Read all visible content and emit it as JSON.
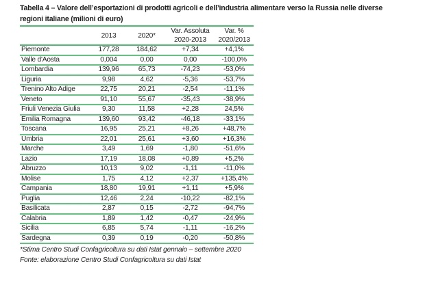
{
  "title": "Tabella 4 – Valore dell’esportazioni di prodotti agricoli e dell’industria alimentare verso la Russia nelle diverse regioni italiane (milioni di euro)",
  "headers": {
    "c1": "2013",
    "c2": "2020*",
    "c3a": "Var. Assoluta",
    "c3b": "2020-2013",
    "c4a": "Var. %",
    "c4b": "2020/2013"
  },
  "rows": [
    [
      "Piemonte",
      "177,28",
      "184,62",
      "+7,34",
      "+4,1%"
    ],
    [
      "Valle d'Aosta",
      "0,004",
      "0,00",
      "0,00",
      "-100,0%"
    ],
    [
      "Lombardia",
      "139,96",
      "65,73",
      "-74,23",
      "-53,0%"
    ],
    [
      "Liguria",
      "9,98",
      "4,62",
      "-5,36",
      "-53,7%"
    ],
    [
      "Trenino Alto Adige",
      "22,75",
      "20,21",
      "-2,54",
      "-11,1%"
    ],
    [
      "Veneto",
      "91,10",
      "55,67",
      "-35,43",
      "-38,9%"
    ],
    [
      "Friuli Venezia Giulia",
      "9,30",
      "11,58",
      "+2,28",
      "24,5%"
    ],
    [
      "Emilia Romagna",
      "139,60",
      "93,42",
      "-46,18",
      "-33,1%"
    ],
    [
      "Toscana",
      "16,95",
      "25,21",
      "+8,26",
      "+48,7%"
    ],
    [
      "Umbria",
      "22,01",
      "25,61",
      "+3,60",
      "+16,3%"
    ],
    [
      "Marche",
      "3,49",
      "1,69",
      "-1,80",
      "-51,6%"
    ],
    [
      "Lazio",
      "17,19",
      "18,08",
      "+0,89",
      "+5,2%"
    ],
    [
      "Abruzzo",
      "10,13",
      "9,02",
      "-1,11",
      "-11,0%"
    ],
    [
      "Molise",
      "1,75",
      "4,12",
      "+2,37",
      "+135,4%"
    ],
    [
      "Campania",
      "18,80",
      "19,91",
      "+1,11",
      "+5,9%"
    ],
    [
      "Puglia",
      "12,46",
      "2,24",
      "-10,22",
      "-82,1%"
    ],
    [
      "Basilicata",
      "2,87",
      "0,15",
      "-2,72",
      "-94,7%"
    ],
    [
      "Calabria",
      "1,89",
      "1,42",
      "-0,47",
      "-24,9%"
    ],
    [
      "Sicilia",
      "6,85",
      "5,74",
      "-1,11",
      "-16,2%"
    ],
    [
      "Sardegna",
      "0,39",
      "0,19",
      "-0,20",
      "-50,8%"
    ]
  ],
  "footnote": "*Stima Centro Studi Confagricoltura su dati Istat gennaio – settembre 2020",
  "source": "Fonte: elaborazione Centro Studi Confagricoltura su dati Istat",
  "colors": {
    "rule": "#4cbb6c"
  }
}
